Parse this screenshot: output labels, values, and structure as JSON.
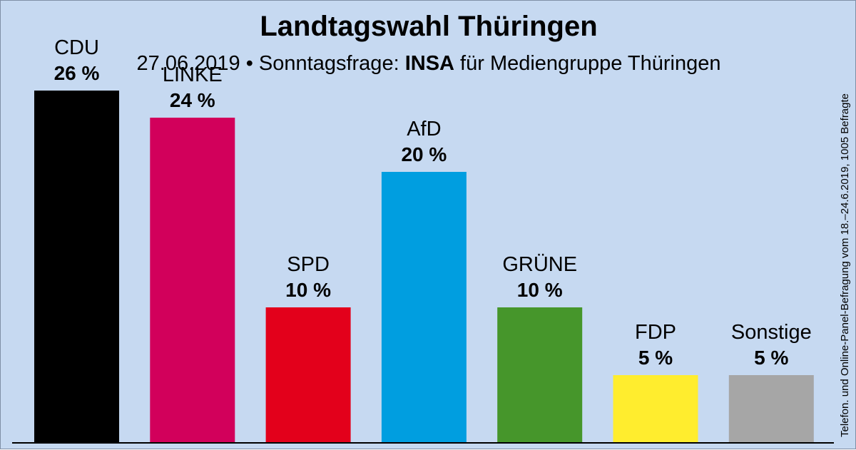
{
  "title": "Landtagswahl Thüringen",
  "subtitle": {
    "prefix": "27.06.2019 • Sonntagsfrage:",
    "institute": "INSA",
    "suffix": "für Mediengruppe Thüringen"
  },
  "side_note": "Telefon. und Online-Panel-Befragung vom 18.–24.6.2019, 1005 Befragte",
  "chart_data": {
    "type": "bar",
    "title": "Landtagswahl Thüringen",
    "categories": [
      "CDU",
      "LINKE",
      "SPD",
      "AfD",
      "GRÜNE",
      "FDP",
      "Sonstige"
    ],
    "values": [
      26,
      24,
      10,
      20,
      10,
      5,
      5
    ],
    "value_labels": [
      "26 %",
      "24 %",
      "10 %",
      "20 %",
      "10 %",
      "5 %",
      "5 %"
    ],
    "colors": [
      "#000000",
      "#d2005b",
      "#e3001b",
      "#009ee0",
      "#46962b",
      "#ffed2e",
      "#a6a6a6"
    ],
    "ylim": [
      0,
      28
    ],
    "grid": false,
    "legend": "none",
    "xlabel": "",
    "ylabel": ""
  }
}
